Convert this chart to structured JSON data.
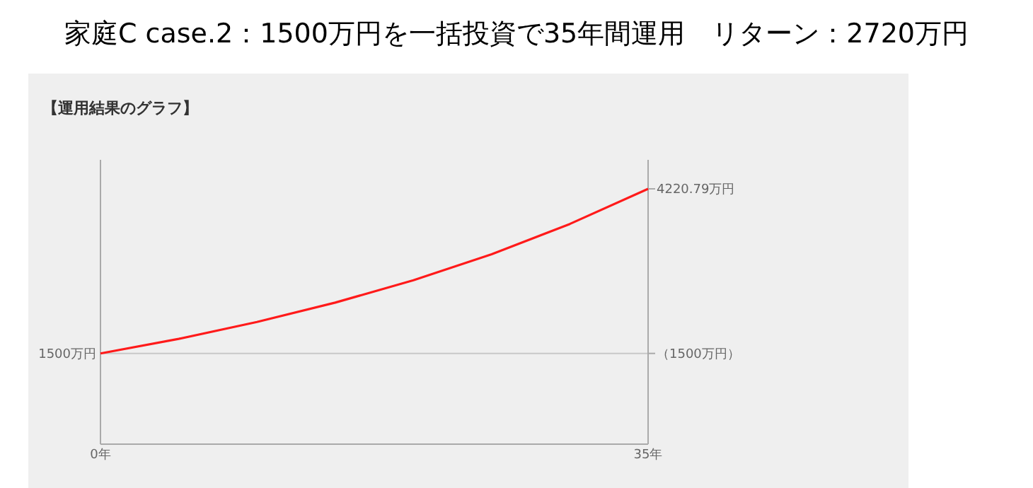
{
  "chart_data": {
    "type": "line",
    "title": "家庭C case.2：1500万円を一括投資で35年間運用　リターン：2720万円",
    "subtitle": "【運用結果のグラフ】",
    "x": [
      0,
      5,
      10,
      15,
      20,
      25,
      30,
      35
    ],
    "series": [
      {
        "color": "#ff1a1a",
        "values": [
          1500,
          1740,
          2020,
          2340,
          2710,
          3140,
          3640,
          4220.79
        ]
      }
    ],
    "annotations": [
      {
        "text": "1500万円",
        "x": 0,
        "y": 1500
      }
    ],
    "xlim": [
      0,
      35
    ],
    "xticks": [
      {
        "value": 0,
        "label": "0年"
      },
      {
        "value": 35,
        "label": "35年"
      }
    ],
    "ylim": [
      0,
      4700
    ],
    "yticks": [
      {
        "value": 1500,
        "label": "（1500万円）"
      },
      {
        "value": 4220.79,
        "label": "4220.79万円"
      }
    ],
    "grid": "y",
    "marker": "none",
    "line_style": "solid"
  }
}
